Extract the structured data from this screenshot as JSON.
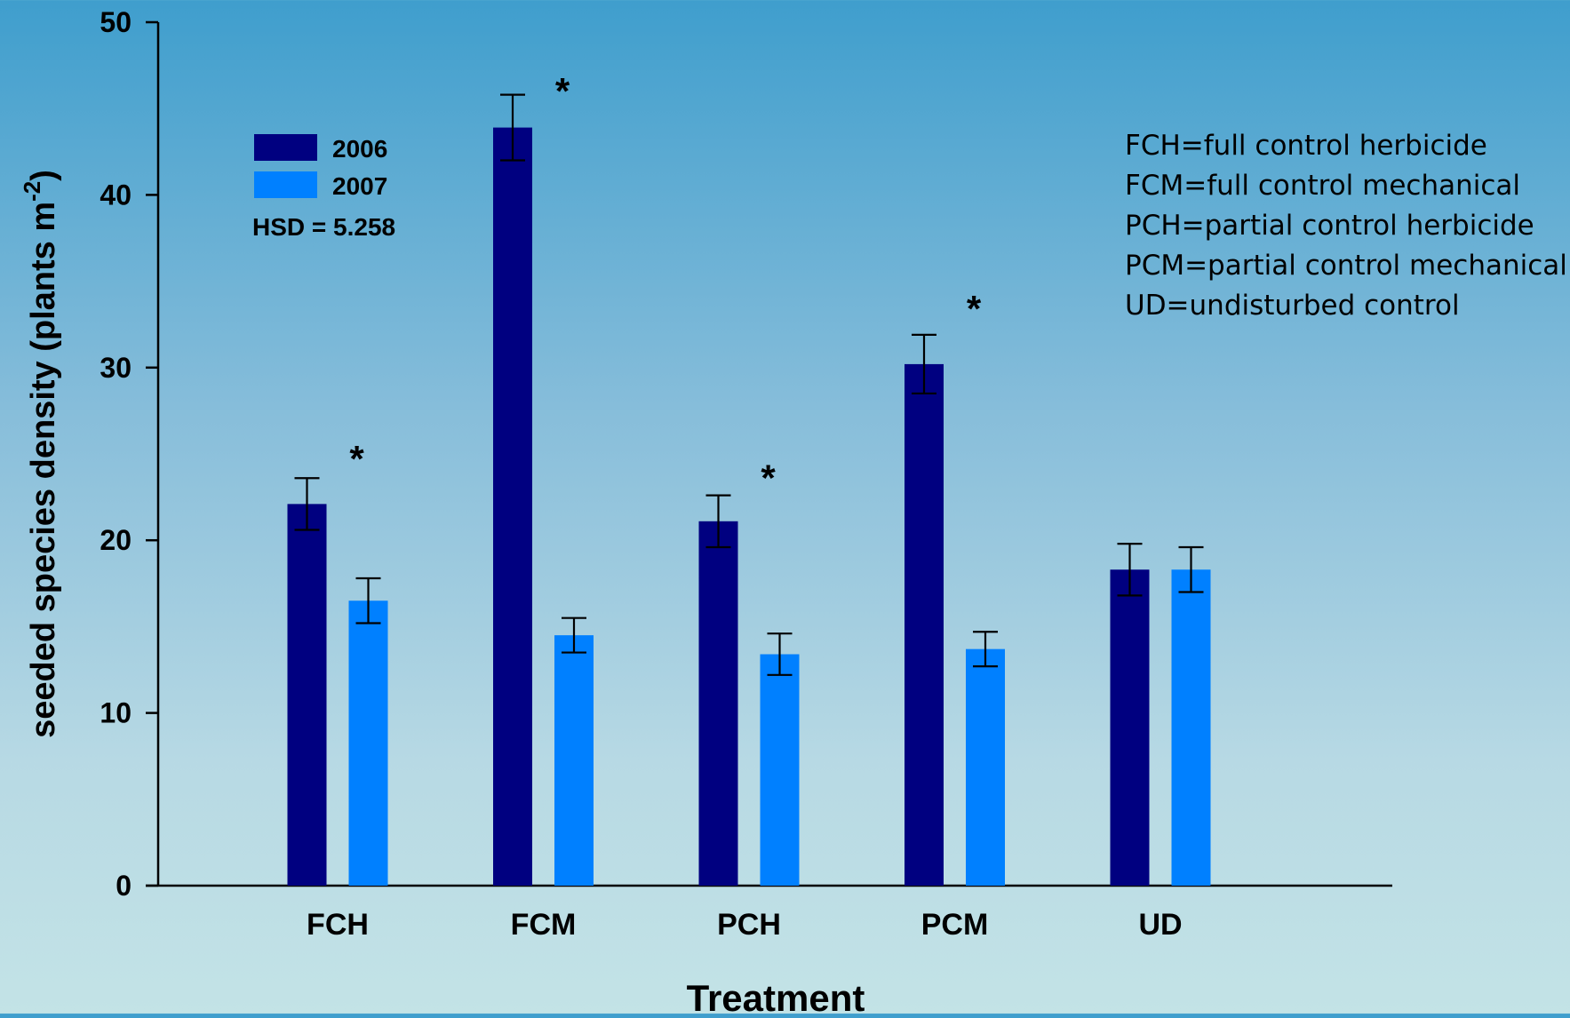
{
  "chart_data": {
    "type": "bar",
    "categories": [
      "FCH",
      "FCM",
      "PCH",
      "PCM",
      "UD"
    ],
    "series": [
      {
        "name": "2006",
        "color": "#000080",
        "values": [
          22.1,
          43.9,
          21.1,
          30.2,
          18.3
        ],
        "errors": [
          1.5,
          1.9,
          1.5,
          1.7,
          1.5
        ]
      },
      {
        "name": "2007",
        "color": "#0080ff",
        "values": [
          16.5,
          14.5,
          13.4,
          13.7,
          18.3
        ],
        "errors": [
          1.3,
          1.0,
          1.2,
          1.0,
          1.3
        ]
      }
    ],
    "significance_marks": [
      {
        "category": "FCH",
        "label": "*",
        "y": 25.2
      },
      {
        "category": "FCM",
        "label": "*",
        "y": 46.5
      },
      {
        "category": "PCH",
        "label": "*",
        "y": 24.1
      },
      {
        "category": "PCM",
        "label": "*",
        "y": 33.9
      }
    ],
    "title": "",
    "xlabel": "Treatment",
    "ylabel": "seeded species density (plants m",
    "ylabel_superscript": "-2",
    "ylabel_suffix": ")",
    "ylim": [
      0,
      50
    ],
    "yticks": [
      0,
      10,
      20,
      30,
      40,
      50
    ],
    "grid": false,
    "legend_position": "top-left",
    "hsd_label": "HSD = 5.258",
    "abbreviations": [
      "FCH=full control herbicide",
      "FCM=full control mechanical",
      "PCH=partial control herbicide",
      "PCM=partial control mechanical",
      "UD=undisturbed control"
    ]
  }
}
